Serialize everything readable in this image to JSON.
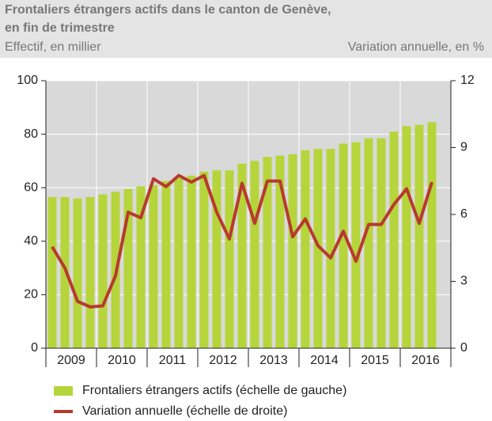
{
  "chart_data": {
    "type": "bar_line",
    "title": [
      "Frontaliers étrangers actifs dans le canton de Genève,",
      "en fin de trimestre"
    ],
    "ylabel": "Effectif, en millier",
    "y2label": "Variation annuelle, en %",
    "categories": [
      null,
      "2009",
      null,
      null,
      null,
      "2010",
      null,
      null,
      null,
      "2011",
      null,
      null,
      null,
      "2012",
      null,
      null,
      null,
      "2013",
      null,
      null,
      null,
      "2014",
      null,
      null,
      null,
      "2015",
      null,
      null,
      null,
      "2016",
      null,
      null
    ],
    "series": [
      {
        "name": "Frontaliers étrangers actifs (échelle de gauche)",
        "type": "bar",
        "color": "#b6d53a",
        "values": [
          56.5,
          56.5,
          56,
          56.5,
          57.5,
          58.5,
          59.5,
          60.5,
          61,
          62.5,
          63.5,
          64.5,
          66,
          66.5,
          66.5,
          69,
          70,
          71.5,
          72,
          72.5,
          74,
          74.5,
          74.5,
          76.5,
          77,
          78.5,
          78.5,
          81,
          83,
          83.5,
          84.5,
          null
        ]
      },
      {
        "name": "Variation annuelle (échelle de droite)",
        "type": "line",
        "axis": "y2",
        "color": "#b73a2e",
        "values": [
          4.55,
          3.6,
          2.1,
          1.85,
          1.9,
          3.25,
          6.1,
          5.85,
          7.6,
          7.25,
          7.75,
          7.45,
          7.75,
          6.1,
          4.9,
          7.4,
          5.6,
          7.5,
          7.5,
          5.0,
          5.8,
          4.6,
          4.05,
          5.25,
          3.9,
          5.55,
          5.55,
          6.45,
          7.15,
          5.6,
          7.45,
          null
        ]
      }
    ],
    "ylim": [
      0,
      100
    ],
    "yticks": [
      0,
      20,
      40,
      60,
      80,
      100
    ],
    "y2lim": [
      0,
      12
    ],
    "y2ticks": [
      0,
      3,
      6,
      9,
      12
    ],
    "grid": true
  }
}
